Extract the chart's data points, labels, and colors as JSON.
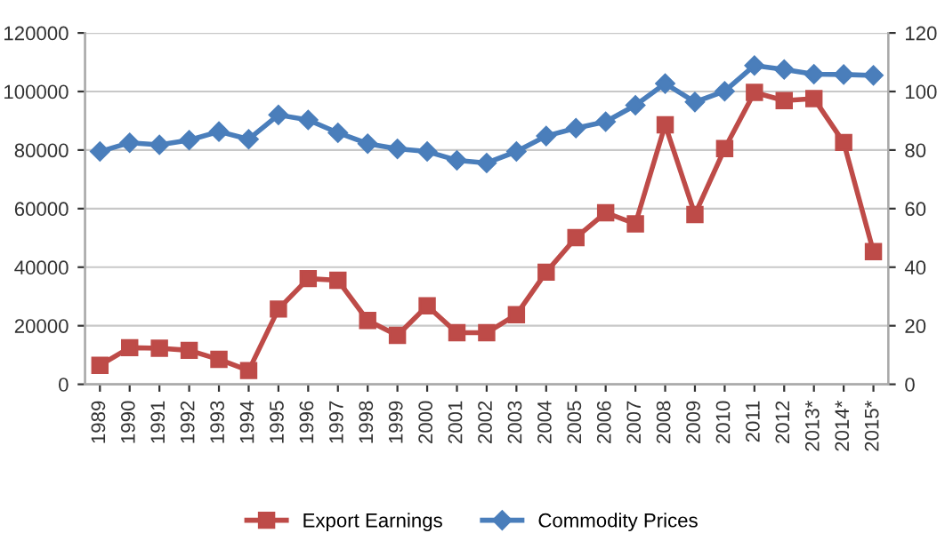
{
  "chart_data": {
    "type": "line",
    "categories": [
      "1989",
      "1990",
      "1991",
      "1992",
      "1993",
      "1994",
      "1995",
      "1996",
      "1997",
      "1998",
      "1999",
      "2000",
      "2001",
      "2002",
      "2003",
      "2004",
      "2005",
      "2006",
      "2007",
      "2008",
      "2009",
      "2010",
      "2011",
      "2012",
      "2013*",
      "2014*",
      "2015*"
    ],
    "series": [
      {
        "name": "Export Earnings",
        "color": "#be4b48",
        "marker": "square",
        "values": [
          6500,
          12500,
          12300,
          11600,
          8500,
          4700,
          25700,
          36100,
          35500,
          21800,
          16700,
          26800,
          17600,
          17600,
          23800,
          38300,
          50100,
          58600,
          54800,
          88600,
          58000,
          80500,
          99700,
          96900,
          97600,
          82600,
          45300
        ]
      },
      {
        "name": "Commodity Prices",
        "color": "#4a7ebb",
        "marker": "diamond",
        "axis": "y2",
        "values": [
          79.5,
          82.5,
          81.8,
          83.4,
          86.3,
          83.7,
          92.0,
          90.3,
          85.9,
          82.2,
          80.4,
          79.5,
          76.5,
          75.6,
          79.5,
          84.8,
          87.5,
          89.7,
          95.3,
          102.7,
          96.4,
          100.1,
          108.9,
          107.5,
          105.9,
          105.8,
          105.5
        ]
      }
    ],
    "ylim": [
      0,
      120000
    ],
    "yticks": [
      0,
      20000,
      40000,
      60000,
      80000,
      100000,
      120000
    ],
    "y2lim": [
      0,
      120
    ],
    "y2ticks": [
      0,
      20,
      40,
      60,
      80,
      100,
      120
    ],
    "grid": "y",
    "legend": "bottom",
    "line_style": "solid"
  }
}
